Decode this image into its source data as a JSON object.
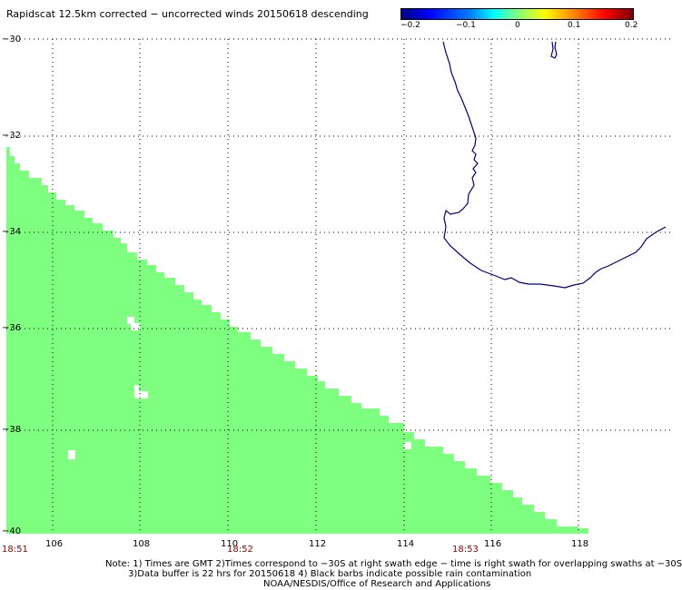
{
  "title": "Rapidscat 12.5km corrected − uncorrected winds 20150618 descending",
  "colorbar": {
    "labels": [
      "−0.2",
      "−0.1",
      "0",
      "0.1",
      "0.2"
    ],
    "colors": [
      "#00007f",
      "#0000ff",
      "#00ffff",
      "#7fff7f",
      "#ffff00",
      "#ff8000",
      "#ff0000",
      "#7f0000"
    ]
  },
  "y_axis_labels": [
    "−30",
    "−32",
    "−34",
    "−36",
    "−38",
    "−40"
  ],
  "x_axis_labels": [
    "106",
    "108",
    "110",
    "112",
    "114",
    "116",
    "118"
  ],
  "time_labels": [
    "18:51",
    "18:52",
    "18:53"
  ],
  "swath_color": "#7fff7f",
  "coast_color": "#000080",
  "notes": {
    "line1": "Note: 1) Times are GMT 2)Times correspond to −30S at right swath edge − time is right swath for overlapping swaths at −30S",
    "line2": "3)Data buffer is 22 hrs for 20150618 4) Black barbs indicate possible rain contamination",
    "line3": "NOAA/NESDIS/Office of Research and Applications"
  }
}
